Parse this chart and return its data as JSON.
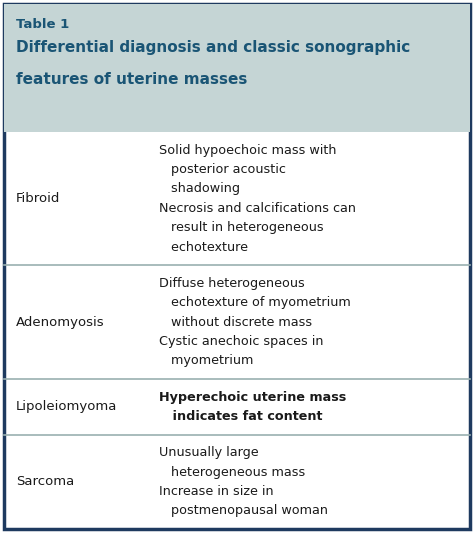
{
  "table_title_line1": "Table 1",
  "table_title_line2": "Differential diagnosis and classic sonographic",
  "table_title_line3": "features of uterine masses",
  "header_bg": "#c5d5d5",
  "body_bg": "#ffffff",
  "outer_border_color": "#1e3a5f",
  "divider_color": "#9ab0b0",
  "title_color": "#1a5575",
  "body_text_color": "#1a1a1a",
  "figsize": [
    4.74,
    5.33
  ],
  "dpi": 100,
  "rows": [
    {
      "diagnosis": "Fibroid",
      "feature_lines": [
        [
          "Solid hypoechoic mass with",
          false
        ],
        [
          "   posterior acoustic",
          false
        ],
        [
          "   shadowing",
          false
        ],
        [
          "Necrosis and calcifications can",
          false
        ],
        [
          "   result in heterogeneous",
          false
        ],
        [
          "   echotexture",
          false
        ]
      ]
    },
    {
      "diagnosis": "Adenomyosis",
      "feature_lines": [
        [
          "Diffuse heterogeneous",
          false
        ],
        [
          "   echotexture of myometrium",
          false
        ],
        [
          "   without discrete mass",
          false
        ],
        [
          "Cystic anechoic spaces in",
          false
        ],
        [
          "   myometrium",
          false
        ]
      ]
    },
    {
      "diagnosis": "Lipoleiomyoma",
      "feature_lines": [
        [
          "Hyperechoic uterine mass",
          true
        ],
        [
          "   indicates fat content",
          true
        ]
      ]
    },
    {
      "diagnosis": "Sarcoma",
      "feature_lines": [
        [
          "Unusually large",
          false
        ],
        [
          "   heterogeneous mass",
          false
        ],
        [
          "Increase in size in",
          false
        ],
        [
          "   postmenopausal woman",
          false
        ]
      ]
    }
  ]
}
